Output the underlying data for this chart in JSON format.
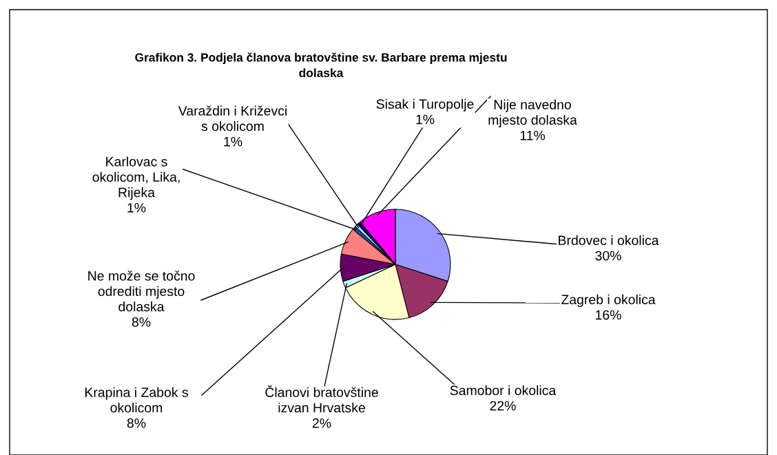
{
  "chart_data": {
    "type": "pie",
    "title": "Grafikon 3. Podjela članova bratovštine sv. Barbare prema mjestu dolaska",
    "categories": [
      "Brdovec i okolica",
      "Zagreb i okolica",
      "Samobor i okolica",
      "Članovi bratovštine izvan Hrvatske",
      "Krapina i Zabok s okolicom",
      "Ne može se točno odrediti mjesto dolaska",
      "Karlovac s okolicom, Lika, Rijeka",
      "Varaždin i Križevci s okolicom",
      "Sisak i Turopolje",
      "Nije navedno mjesto dolaska"
    ],
    "values": [
      30,
      16,
      22,
      2,
      8,
      8,
      1,
      1,
      1,
      11
    ],
    "value_labels": [
      "30%",
      "16%",
      "22%",
      "2%",
      "8%",
      "8%",
      "1%",
      "1%",
      "1%",
      "11%"
    ],
    "colors": [
      "#9999ff",
      "#993366",
      "#ffffcc",
      "#ccffff",
      "#660066",
      "#ff8080",
      "#0066cc",
      "#ccccff",
      "#000080",
      "#ff00ff"
    ]
  }
}
